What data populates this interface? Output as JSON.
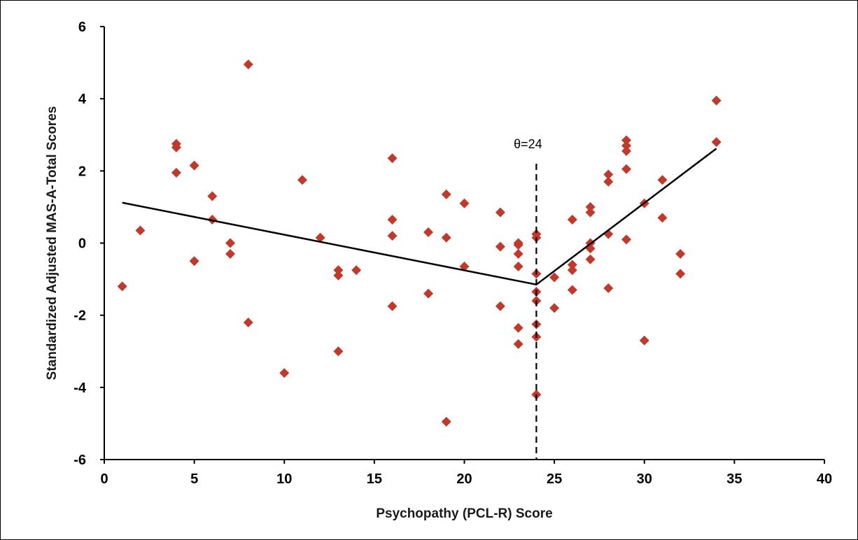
{
  "chart_data": {
    "type": "scatter",
    "xlabel": "Psychopathy (PCL-R) Score",
    "ylabel": "Standardized Adjusted MAS-A-Total Scores",
    "xlim": [
      0,
      40
    ],
    "ylim": [
      -6,
      6
    ],
    "x_ticks": [
      "0",
      "5",
      "10",
      "15",
      "20",
      "25",
      "30",
      "35",
      "40"
    ],
    "y_ticks": [
      "6",
      "4",
      "2",
      "0",
      "-2",
      "-4",
      "-6"
    ],
    "grid": false,
    "marker_color": "#c0392b",
    "line_color": "#000000",
    "points": [
      {
        "x": 1,
        "y": -1.2
      },
      {
        "x": 2,
        "y": 0.35
      },
      {
        "x": 4,
        "y": 2.75
      },
      {
        "x": 4,
        "y": 2.65
      },
      {
        "x": 4,
        "y": 1.95
      },
      {
        "x": 5,
        "y": 2.15
      },
      {
        "x": 5,
        "y": -0.5
      },
      {
        "x": 6,
        "y": 1.3
      },
      {
        "x": 6,
        "y": 0.65
      },
      {
        "x": 7,
        "y": 0.0
      },
      {
        "x": 7,
        "y": -0.3
      },
      {
        "x": 8,
        "y": 4.95
      },
      {
        "x": 8,
        "y": -2.2
      },
      {
        "x": 10,
        "y": -3.6
      },
      {
        "x": 11,
        "y": 1.75
      },
      {
        "x": 12,
        "y": 0.15
      },
      {
        "x": 13,
        "y": -0.75
      },
      {
        "x": 13,
        "y": -0.9
      },
      {
        "x": 13,
        "y": -3.0
      },
      {
        "x": 14,
        "y": -0.75
      },
      {
        "x": 16,
        "y": 2.35
      },
      {
        "x": 16,
        "y": 0.65
      },
      {
        "x": 16,
        "y": 0.2
      },
      {
        "x": 16,
        "y": -1.75
      },
      {
        "x": 18,
        "y": 0.3
      },
      {
        "x": 18,
        "y": -1.4
      },
      {
        "x": 19,
        "y": 1.35
      },
      {
        "x": 19,
        "y": 0.15
      },
      {
        "x": 19,
        "y": -4.95
      },
      {
        "x": 20,
        "y": 1.1
      },
      {
        "x": 20,
        "y": -0.65
      },
      {
        "x": 22,
        "y": 0.85
      },
      {
        "x": 22,
        "y": -0.1
      },
      {
        "x": 22,
        "y": -1.75
      },
      {
        "x": 23,
        "y": 0.0
      },
      {
        "x": 23,
        "y": -0.05
      },
      {
        "x": 23,
        "y": -0.3
      },
      {
        "x": 23,
        "y": -0.65
      },
      {
        "x": 23,
        "y": -2.35
      },
      {
        "x": 23,
        "y": -2.8
      },
      {
        "x": 24,
        "y": 0.25
      },
      {
        "x": 24,
        "y": 0.15
      },
      {
        "x": 24,
        "y": -0.85
      },
      {
        "x": 24,
        "y": -1.35
      },
      {
        "x": 24,
        "y": -1.6
      },
      {
        "x": 24,
        "y": -2.25
      },
      {
        "x": 24,
        "y": -2.6
      },
      {
        "x": 24,
        "y": -4.2
      },
      {
        "x": 25,
        "y": -0.95
      },
      {
        "x": 25,
        "y": -1.8
      },
      {
        "x": 26,
        "y": 0.65
      },
      {
        "x": 26,
        "y": -0.6
      },
      {
        "x": 26,
        "y": -0.75
      },
      {
        "x": 26,
        "y": -1.3
      },
      {
        "x": 27,
        "y": 1.0
      },
      {
        "x": 27,
        "y": 0.85
      },
      {
        "x": 27,
        "y": 0.0
      },
      {
        "x": 27,
        "y": -0.15
      },
      {
        "x": 27,
        "y": -0.45
      },
      {
        "x": 28,
        "y": 1.9
      },
      {
        "x": 28,
        "y": 1.7
      },
      {
        "x": 28,
        "y": 0.25
      },
      {
        "x": 28,
        "y": -1.25
      },
      {
        "x": 29,
        "y": 2.85
      },
      {
        "x": 29,
        "y": 2.7
      },
      {
        "x": 29,
        "y": 2.55
      },
      {
        "x": 29,
        "y": 2.05
      },
      {
        "x": 29,
        "y": 0.1
      },
      {
        "x": 30,
        "y": 1.1
      },
      {
        "x": 30,
        "y": -2.7
      },
      {
        "x": 31,
        "y": 1.75
      },
      {
        "x": 31,
        "y": 0.7
      },
      {
        "x": 32,
        "y": -0.3
      },
      {
        "x": 32,
        "y": -0.85
      },
      {
        "x": 34,
        "y": 3.95
      },
      {
        "x": 34,
        "y": 2.8
      }
    ],
    "fit_line": [
      {
        "x": 1,
        "y": 1.12
      },
      {
        "x": 24,
        "y": -1.15
      },
      {
        "x": 34,
        "y": 2.62
      }
    ],
    "threshold": {
      "x": 24,
      "y_top": 2.2,
      "label": "θ=24"
    }
  }
}
